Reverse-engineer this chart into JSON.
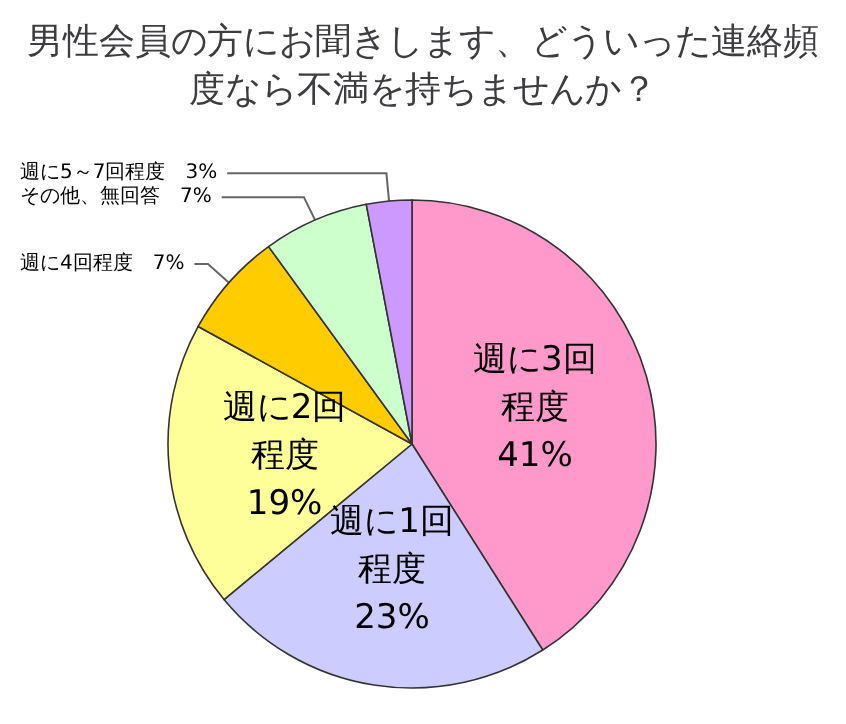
{
  "chart_data": {
    "type": "pie",
    "title": "男性会員の方にお聞きします、どういった連絡頻度なら不満を持ちませんか？",
    "categories": [
      "週に3回程度",
      "週に1回程度",
      "週に2回程度",
      "週に4回程度",
      "その他、無回答",
      "週に5～7回程度"
    ],
    "values": [
      41,
      23,
      19,
      7,
      7,
      3
    ],
    "value_labels": [
      "41%",
      "23%",
      "19%",
      "7%",
      "7%",
      "3%"
    ],
    "colors": [
      "#ff99cc",
      "#ccccff",
      "#ffff99",
      "#ffcc00",
      "#ccffcc",
      "#cc99ff"
    ],
    "legend": false
  }
}
